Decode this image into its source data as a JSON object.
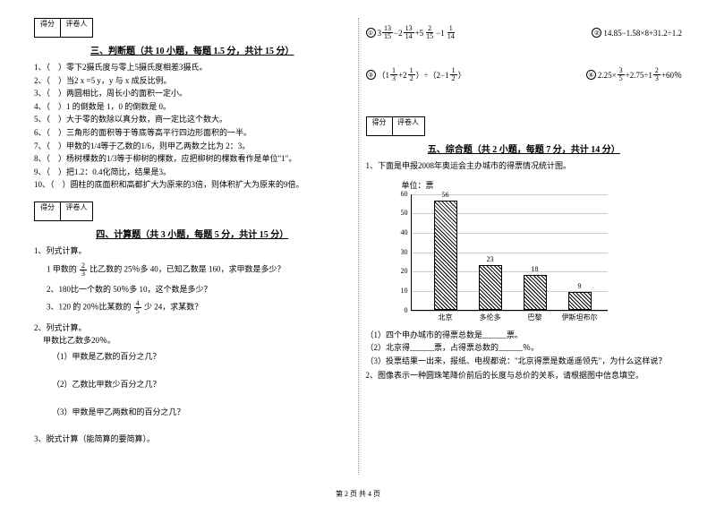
{
  "scoreBox": {
    "label1": "得分",
    "label2": "评卷人"
  },
  "section3": {
    "title": "三、判断题（共 10 小题，每题 1.5 分，共计 15 分）",
    "items": [
      "1、（　）零下2摄氏度与零上5摄氏度相差3摄氏。",
      "2、（　）当2 x =5 y，y 与 x 成反比例。",
      "3、（　）两圆相比，周长小的面积一定小。",
      "4、（　）1 的倒数是 1，0 的倒数是 0。",
      "5、（　）大于零的数除以真分数，商一定比这个数大。",
      "6、（　）三角形的面积等于等底等高平行四边形面积的一半。",
      "7、（　）甲数的1/4等于乙数的1/6，则甲乙两数之比为 2：3。",
      "8、（　）杨树棵数的1/3等于柳树的棵数，应把柳树的棵数看作是单位\"1\"。",
      "9、（　）把1.2：0.4化简比，结果是3。",
      "10、（　）圆柱的底面积和高都扩大为原来的3倍，则体积扩大为原来的9倍。"
    ]
  },
  "section4": {
    "title": "四、计算题（共 3 小题，每题 5 分，共计 15 分）",
    "q1": {
      "header": "1、列式计算。",
      "line1a": "1 甲数的",
      "line1b": "比乙数的 25％多 40，已知乙数是 160，求甲数是多少？",
      "frac1": {
        "num": "2",
        "den": "3"
      },
      "line2": "2、180比一个数的 50％多 10，这个数是多少？",
      "line3a": "3、120 的 20％比某数的",
      "line3b": "少 24，求某数？",
      "frac3": {
        "num": "4",
        "den": "5"
      }
    },
    "q2": {
      "header": "2、列式计算。",
      "sub0": "甲数比乙数多20％。",
      "sub1": "（1）甲数是乙数的百分之几？",
      "sub2": "（2）乙数比甲数少百分之几？",
      "sub3": "（3）甲数是甲乙两数和的百分之几？"
    },
    "q3": "3、脱式计算（能简算的要简算）。"
  },
  "mathExpr": {
    "e1": {
      "circled": "①",
      "whole1": "3",
      "f1n": "13",
      "f1d": "15",
      "op1": "−2",
      "f2n": "13",
      "f2d": "14",
      "op2": "+5",
      "f3n": "2",
      "f3d": "15",
      "op3": "−1",
      "f4n": "1",
      "f4d": "14"
    },
    "e2": {
      "circled": "②",
      "text": "14.85−1.58×8+31.2÷1.2"
    },
    "e3": {
      "circled": "③",
      "lp": "（1",
      "f1n": "1",
      "f1d": "3",
      "op1": "+2",
      "f2n": "1",
      "f2d": "2",
      "rp": "）÷（2−1",
      "f3n": "1",
      "f3d": "2",
      "end": "）"
    },
    "e4": {
      "circled": "④",
      "pre": "2.25×",
      "f1n": "3",
      "f1d": "5",
      "op1": "+2.75÷1",
      "f2n": "2",
      "f2d": "3",
      "suf": "+60％"
    }
  },
  "section5": {
    "title": "五、综合题（共 2 小题，每题 7 分，共计 14 分）",
    "q1": "1、下面是申报2008年奥运会主办城市的得票情况统计图。",
    "chart": {
      "unit": "单位：票",
      "yticks": [
        0,
        10,
        20,
        30,
        40,
        50,
        60
      ],
      "ymax": 60,
      "bars": [
        {
          "label": "北京",
          "value": 56
        },
        {
          "label": "多伦多",
          "value": 23
        },
        {
          "label": "巴黎",
          "value": 18
        },
        {
          "label": "伊斯坦布尔",
          "value": 9
        }
      ],
      "bar_color": "#000000",
      "grid_color": "#cccccc",
      "bar_positions": [
        25,
        75,
        125,
        175
      ]
    },
    "sub1": "（1）四个申办城市的得票总数是______票。",
    "sub2": "（2）北京得______票，占得票总数的______％。",
    "sub3": "（3）投票结果一出来，报纸、电视都说：\"北京得票是数遥遥领先\"，为什么这样说？",
    "q2": "2、图像表示一种圆珠笔降价前后的长度与总价的关系，请根据图中信息填空。"
  },
  "footer": "第 2 页 共 4 页"
}
